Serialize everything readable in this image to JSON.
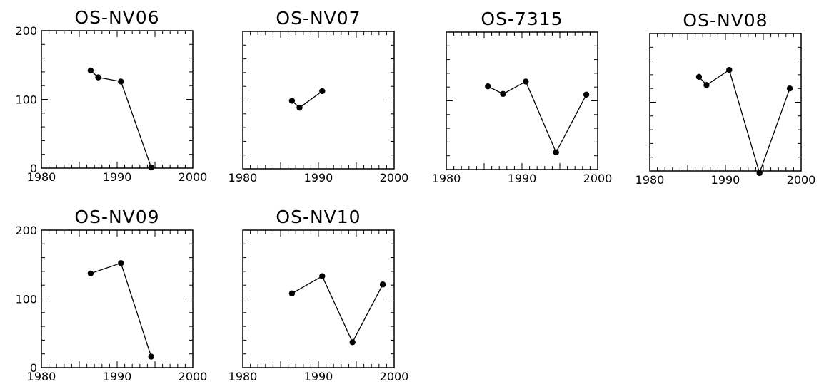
{
  "chart_data": [
    {
      "type": "line",
      "title": "OS-NV06",
      "xlim": [
        1980,
        2000
      ],
      "ylim": [
        0,
        200
      ],
      "x_ticks": [
        "1980",
        "1990",
        "2000"
      ],
      "y_ticks": [
        "0",
        "100",
        "200"
      ],
      "x": [
        1986.5,
        1987.5,
        1990.5,
        1994.5
      ],
      "y": [
        142,
        132,
        126,
        1
      ]
    },
    {
      "type": "line",
      "title": "OS-NV07",
      "xlim": [
        1980,
        2000
      ],
      "ylim": [
        0,
        200
      ],
      "x_ticks": [
        "1980",
        "1990",
        "2000"
      ],
      "y_ticks": [],
      "x": [
        1986.5,
        1987.5,
        1990.5
      ],
      "y": [
        99,
        89,
        113
      ]
    },
    {
      "type": "line",
      "title": "OS-7315",
      "xlim": [
        1980,
        2000
      ],
      "ylim": [
        0,
        200
      ],
      "x_ticks": [
        "1980",
        "1990",
        "2000"
      ],
      "y_ticks": [],
      "x": [
        1985.5,
        1987.5,
        1990.5,
        1994.5,
        1998.5
      ],
      "y": [
        121,
        110,
        128,
        25,
        109
      ]
    },
    {
      "type": "line",
      "title": "OS-NV08",
      "xlim": [
        1980,
        2000
      ],
      "ylim": [
        0,
        200
      ],
      "x_ticks": [
        "1980",
        "1990",
        "2000"
      ],
      "y_ticks": [],
      "x": [
        1986.5,
        1987.5,
        1990.5,
        1994.5,
        1998.5
      ],
      "y": [
        137,
        125,
        147,
        -3,
        120
      ]
    },
    {
      "type": "line",
      "title": "OS-NV09",
      "xlim": [
        1980,
        2000
      ],
      "ylim": [
        0,
        200
      ],
      "x_ticks": [
        "1980",
        "1990",
        "2000"
      ],
      "y_ticks": [
        "0",
        "100",
        "200"
      ],
      "x": [
        1986.5,
        1990.5,
        1994.5
      ],
      "y": [
        137,
        152,
        16
      ]
    },
    {
      "type": "line",
      "title": "OS-NV10",
      "xlim": [
        1980,
        2000
      ],
      "ylim": [
        0,
        200
      ],
      "x_ticks": [
        "1980",
        "1990",
        "2000"
      ],
      "y_ticks": [],
      "x": [
        1986.5,
        1990.5,
        1994.5,
        1998.5
      ],
      "y": [
        108,
        133,
        37,
        121
      ]
    }
  ]
}
